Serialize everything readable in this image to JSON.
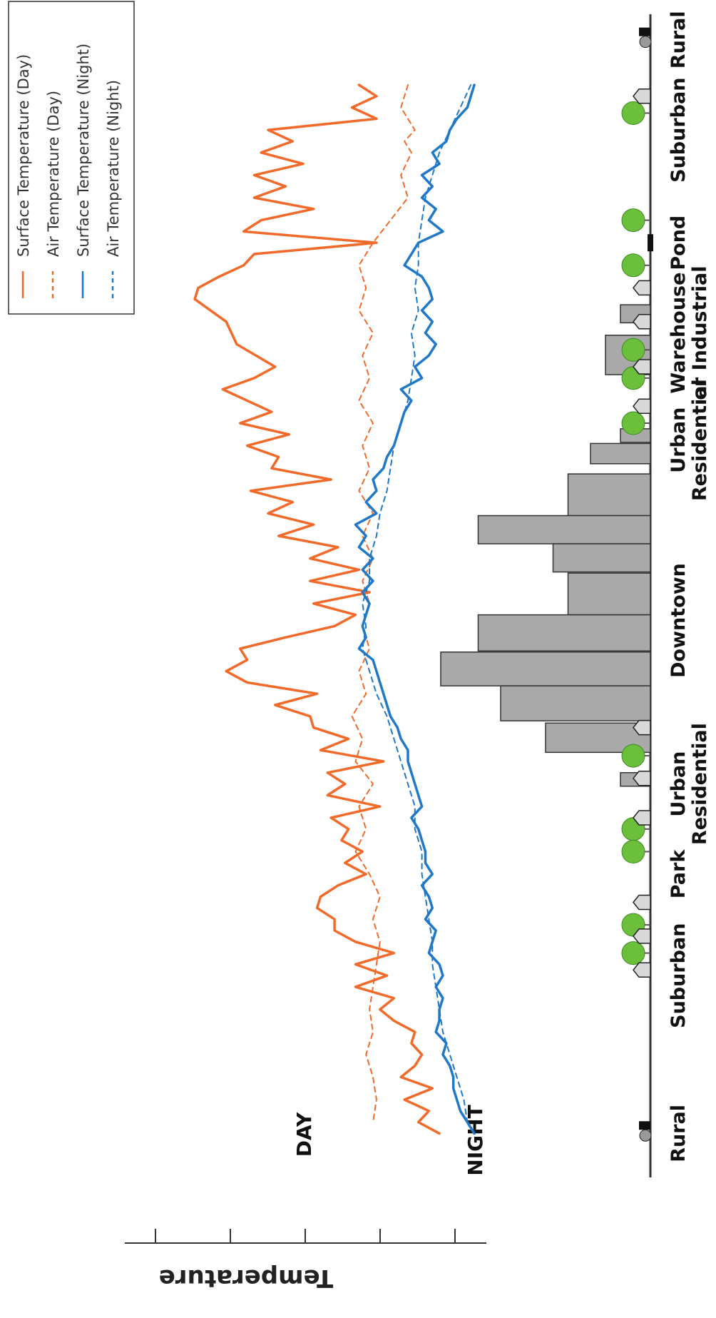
{
  "chart_data": {
    "type": "line",
    "orientation": "rotated-90-clockwise",
    "ylabel": "Temperature",
    "y_ticks_count": 5,
    "series_label_day": "DAY",
    "series_label_night": "NIGHT",
    "legend": {
      "placement": "top-right",
      "entries": [
        {
          "label": "Surface Temperature (Day)",
          "color": "#f26a2a",
          "dash": "solid"
        },
        {
          "label": "Air Temperature  (Day)",
          "color": "#f26a2a",
          "dash": "dashed"
        },
        {
          "label": "Surface Temperature (Night)",
          "color": "#1f78c8",
          "dash": "solid"
        },
        {
          "label": "Air Temperature (Night)",
          "color": "#1f78c8",
          "dash": "dashed"
        }
      ]
    },
    "x_range": [
      0,
      100
    ],
    "y_range": [
      0,
      10
    ],
    "categories": [
      {
        "label": "Rural",
        "x": 1
      },
      {
        "label": "Suburban",
        "x": 9
      },
      {
        "label": "Pond",
        "x": 19
      },
      {
        "label": "Warehouse or Industrial",
        "x": 27
      },
      {
        "label": "Urban Residential",
        "x": 36.5
      },
      {
        "label": "Downtown",
        "x": 52.5
      },
      {
        "label": "Urban Residential",
        "x": 67
      },
      {
        "label": "Park",
        "x": 75
      },
      {
        "label": "Suburban",
        "x": 84
      },
      {
        "label": "Rural",
        "x": 98
      }
    ],
    "series": [
      {
        "name": "Surface Temperature (Day)",
        "color": "#f26a2a",
        "dash": "solid",
        "x": [
          5,
          6,
          7,
          8,
          9,
          10,
          11,
          12,
          13,
          14,
          15,
          16,
          17,
          18,
          19,
          20,
          21,
          22,
          23,
          24,
          26,
          28,
          30,
          31,
          32,
          34,
          35,
          36,
          37,
          38,
          39,
          40,
          41,
          42,
          43,
          44,
          45,
          46,
          47,
          48,
          49,
          50,
          51,
          52,
          53,
          54,
          55,
          56,
          57,
          58,
          59,
          60,
          61,
          62,
          63,
          64,
          65,
          66,
          67,
          68,
          69,
          70,
          71,
          72,
          73,
          74,
          75,
          76,
          77,
          78,
          79,
          80,
          81,
          82,
          83,
          84,
          85,
          86,
          87,
          88,
          89,
          90,
          91,
          92,
          93,
          94,
          95,
          96,
          97,
          98
        ],
        "y": [
          3.4,
          2.9,
          3.6,
          2.9,
          6.0,
          5.3,
          6.2,
          5.0,
          6.4,
          5.5,
          6.4,
          4.7,
          6.2,
          6.7,
          2.9,
          6.4,
          6.7,
          7.4,
          8.0,
          8.1,
          7.2,
          6.9,
          5.8,
          6.4,
          7.3,
          5.9,
          6.8,
          5.4,
          6.6,
          5.7,
          5.9,
          4.2,
          6.5,
          5.3,
          6.0,
          4.7,
          5.7,
          4.0,
          4.8,
          3.4,
          4.8,
          3.1,
          4.7,
          3.5,
          4.1,
          5.5,
          6.8,
          6.6,
          7.2,
          6.6,
          4.6,
          5.8,
          4.8,
          4.7,
          3.7,
          4.5,
          2.7,
          4.3,
          3.8,
          4.3,
          2.8,
          4.2,
          3.7,
          3.9,
          3.3,
          3.8,
          3.2,
          4.0,
          4.5,
          4.6,
          4.1,
          4.1,
          3.5,
          2.4,
          3.5,
          2.6,
          3.5,
          2.4,
          2.8,
          2.4,
          1.8,
          1.9,
          1.6,
          1.8,
          2.2,
          1.3,
          2.1,
          1.4,
          1.7,
          1.1
        ]
      },
      {
        "name": "Air Temperature  (Day)",
        "color": "#f26a2a",
        "dash": "dashed",
        "x": [
          5,
          7,
          9,
          10,
          11,
          13,
          15,
          17,
          19,
          21,
          23,
          25,
          27,
          29,
          31,
          33,
          35,
          37,
          39,
          41,
          43,
          45,
          47,
          49,
          51,
          53,
          55,
          57,
          59,
          61,
          63,
          65,
          67,
          69,
          71,
          73,
          75,
          77,
          79,
          81,
          83,
          85,
          87,
          89,
          91,
          93,
          95,
          97
        ],
        "y": [
          2.0,
          2.2,
          1.8,
          2.1,
          1.9,
          2.2,
          2.0,
          2.5,
          3.0,
          3.4,
          3.2,
          3.4,
          3.0,
          3.3,
          3.1,
          3.4,
          3.0,
          3.3,
          3.1,
          3.4,
          3.0,
          3.3,
          3.0,
          3.3,
          3.1,
          3.3,
          3.1,
          3.4,
          3.2,
          3.6,
          3.3,
          3.5,
          3.0,
          3.4,
          3.2,
          3.5,
          3.1,
          2.8,
          3.0,
          2.8,
          2.9,
          3.0,
          3.1,
          3.0,
          3.2,
          3.0,
          2.9,
          3.0
        ]
      },
      {
        "name": "Surface Temperature (Night)",
        "color": "#1f78c8",
        "dash": "solid",
        "x": [
          5,
          6,
          7,
          8,
          9,
          10,
          11,
          12,
          13,
          14,
          15,
          16,
          17,
          18,
          19,
          20,
          21,
          22,
          23,
          24,
          25,
          26,
          27,
          28,
          29,
          30,
          31,
          32,
          33,
          34,
          35,
          36,
          37,
          38,
          39,
          40,
          41,
          42,
          43,
          44,
          45,
          46,
          47,
          48,
          49,
          50,
          51,
          52,
          53,
          54,
          55,
          56,
          57,
          58,
          59,
          60,
          61,
          62,
          63,
          64,
          65,
          66,
          67,
          68,
          69,
          70,
          71,
          72,
          73,
          74,
          75,
          76,
          77,
          78,
          79,
          80,
          81,
          82,
          83,
          84,
          85,
          86,
          87,
          88,
          89,
          90,
          91,
          92,
          93,
          94,
          95,
          96,
          97,
          98
        ],
        "y": [
          0.1,
          0.2,
          0.3,
          0.6,
          0.8,
          0.9,
          1.3,
          1.1,
          1.6,
          1.3,
          1.6,
          1.2,
          1.4,
          1.0,
          1.7,
          1.9,
          2.1,
          1.6,
          1.4,
          1.3,
          1.6,
          1.3,
          1.5,
          1.2,
          1.4,
          1.8,
          1.6,
          2.2,
          1.9,
          2.1,
          2.2,
          2.3,
          2.4,
          2.6,
          2.7,
          3.0,
          2.9,
          3.2,
          2.9,
          3.5,
          3.2,
          3.4,
          3.0,
          3.3,
          3.0,
          3.3,
          3.1,
          3.2,
          3.3,
          3.2,
          3.4,
          3.0,
          2.9,
          2.8,
          2.7,
          2.6,
          2.5,
          2.3,
          2.2,
          2.0,
          2.0,
          1.9,
          1.8,
          1.7,
          1.6,
          1.9,
          1.7,
          1.6,
          1.5,
          1.5,
          1.3,
          1.6,
          1.4,
          1.3,
          1.5,
          1.2,
          1.3,
          1.4,
          1.1,
          1.0,
          1.2,
          1.0,
          1.1,
          1.1,
          1.2,
          0.9,
          1.0,
          0.8,
          0.7,
          0.7,
          0.6,
          0.5,
          0.3,
          0.1
        ]
      },
      {
        "name": "Air Temperature (Night)",
        "color": "#1f78c8",
        "dash": "dashed",
        "x": [
          5,
          7,
          9,
          11,
          13,
          15,
          17,
          19,
          21,
          23,
          25,
          27,
          29,
          31,
          33,
          35,
          37,
          39,
          41,
          43,
          45,
          47,
          49,
          51,
          53,
          55,
          57,
          59,
          61,
          63,
          65,
          67,
          69,
          71,
          73,
          75,
          77,
          79,
          81,
          83,
          85,
          87,
          89,
          91,
          93,
          95,
          97
        ],
        "y": [
          0.2,
          0.5,
          0.8,
          1.1,
          1.3,
          1.5,
          1.6,
          1.7,
          1.7,
          1.8,
          1.7,
          1.9,
          1.8,
          1.9,
          2.0,
          2.2,
          2.4,
          2.5,
          2.6,
          2.8,
          2.9,
          3.1,
          3.1,
          3.3,
          3.2,
          3.3,
          3.1,
          2.9,
          2.6,
          2.4,
          2.2,
          2.0,
          1.8,
          1.8,
          1.6,
          1.6,
          1.5,
          1.4,
          1.3,
          1.3,
          1.2,
          1.1,
          1.0,
          0.8,
          0.6,
          0.4,
          0.3
        ]
      }
    ],
    "buildings": [
      {
        "x": 35.5,
        "w": 1.2,
        "h": 0.4
      },
      {
        "x": 36.8,
        "w": 1.8,
        "h": 0.8
      },
      {
        "x": 39.5,
        "w": 3.7,
        "h": 1.1
      },
      {
        "x": 43.2,
        "w": 2.5,
        "h": 2.3
      },
      {
        "x": 45.7,
        "w": 2.5,
        "h": 1.3
      },
      {
        "x": 48.3,
        "w": 3.7,
        "h": 1.1
      },
      {
        "x": 52.0,
        "w": 3.2,
        "h": 2.3
      },
      {
        "x": 55.3,
        "w": 3.0,
        "h": 2.8
      },
      {
        "x": 58.3,
        "w": 3.1,
        "h": 2.0
      },
      {
        "x": 61.6,
        "w": 2.6,
        "h": 1.4
      },
      {
        "x": 66.0,
        "w": 1.2,
        "h": 0.4
      },
      {
        "x": 24.5,
        "w": 1.6,
        "h": 0.4
      },
      {
        "x": 27.2,
        "w": 3.5,
        "h": 0.6
      }
    ]
  }
}
